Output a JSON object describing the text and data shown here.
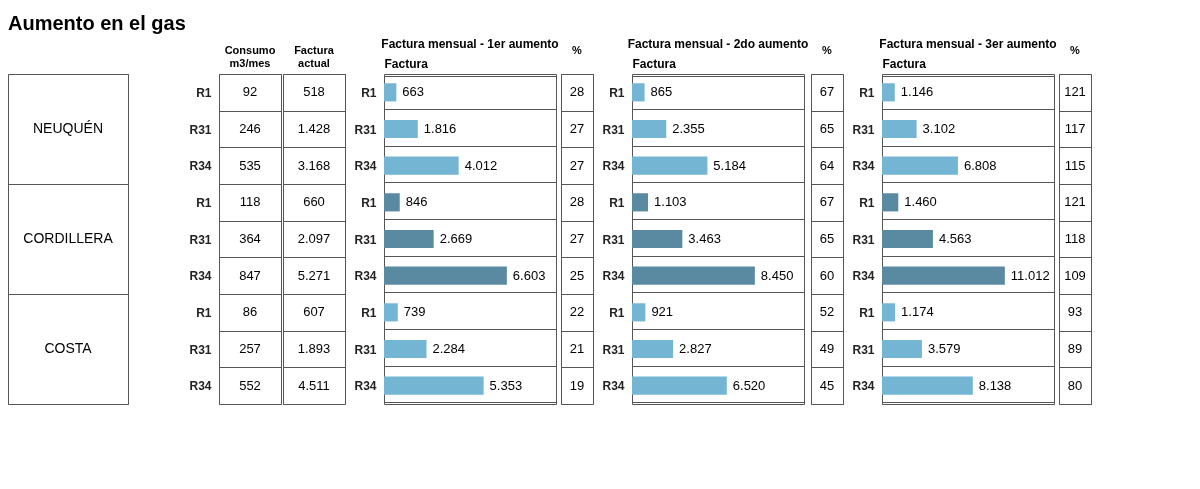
{
  "chart_data": [
    {
      "type": "other",
      "title": "Aumento en el gas",
      "annotations": [
        "NEUQUÉN",
        "CORDILLERA",
        "COSTA"
      ]
    },
    {
      "type": "other",
      "xlabel": "Consumo m3/mes",
      "y_categories": [
        "R1",
        "R31",
        "R34",
        "R1",
        "R31",
        "R34",
        "R1",
        "R31",
        "R34"
      ],
      "annotations": [
        "92",
        "246",
        "535",
        "118",
        "364",
        "847",
        "86",
        "257",
        "552"
      ]
    },
    {
      "type": "other",
      "xlabel": "Factura actual",
      "annotations": [
        "518",
        "1.428",
        "3.168",
        "660",
        "2.097",
        "5.271",
        "607",
        "1.893",
        "4.511"
      ]
    },
    {
      "type": "bar",
      "orientation": "horizontal",
      "title": "Factura mensual - 1er aumento",
      "xlabel": "Factura",
      "grid": "y",
      "categories": [
        "R1",
        "R31",
        "R34",
        "R1",
        "R31",
        "R34",
        "R1",
        "R31",
        "R34"
      ],
      "values": [
        663,
        1816,
        4012,
        846,
        2669,
        6603,
        739,
        2284,
        5353
      ],
      "value_labels": [
        "663",
        "1.816",
        "4.012",
        "846",
        "2.669",
        "6.603",
        "739",
        "2.284",
        "5.353"
      ],
      "colors": [
        "#74b5d3",
        "#74b5d3",
        "#74b5d3",
        "#5a8aa1",
        "#5a8aa1",
        "#5a8aa1",
        "#74b5d3",
        "#74b5d3",
        "#74b5d3"
      ]
    },
    {
      "type": "other",
      "xlabel": "%",
      "annotations": [
        "28",
        "27",
        "27",
        "28",
        "27",
        "25",
        "22",
        "21",
        "19"
      ]
    },
    {
      "type": "bar",
      "orientation": "horizontal",
      "title": "Factura mensual - 2do aumento",
      "xlabel": "Factura",
      "grid": "y",
      "categories": [
        "R1",
        "R31",
        "R34",
        "R1",
        "R31",
        "R34",
        "R1",
        "R31",
        "R34"
      ],
      "values": [
        865,
        2355,
        5184,
        1103,
        3463,
        8450,
        921,
        2827,
        6520
      ],
      "value_labels": [
        "865",
        "2.355",
        "5.184",
        "1.103",
        "3.463",
        "8.450",
        "921",
        "2.827",
        "6.520"
      ],
      "colors": [
        "#74b5d3",
        "#74b5d3",
        "#74b5d3",
        "#5a8aa1",
        "#5a8aa1",
        "#5a8aa1",
        "#74b5d3",
        "#74b5d3",
        "#74b5d3"
      ]
    },
    {
      "type": "other",
      "xlabel": "%",
      "annotations": [
        "67",
        "65",
        "64",
        "67",
        "65",
        "60",
        "52",
        "49",
        "45"
      ]
    },
    {
      "type": "bar",
      "orientation": "horizontal",
      "title": "Factura mensual - 3er aumento",
      "xlabel": "Factura",
      "grid": "y",
      "categories": [
        "R1",
        "R31",
        "R34",
        "R1",
        "R31",
        "R34",
        "R1",
        "R31",
        "R34"
      ],
      "values": [
        1146,
        3102,
        6808,
        1460,
        4563,
        11012,
        1174,
        3579,
        8138
      ],
      "value_labels": [
        "1.146",
        "3.102",
        "6.808",
        "1.460",
        "4.563",
        "11.012",
        "1.174",
        "3.579",
        "8.138"
      ],
      "colors": [
        "#74b5d3",
        "#74b5d3",
        "#74b5d3",
        "#5a8aa1",
        "#5a8aa1",
        "#5a8aa1",
        "#74b5d3",
        "#74b5d3",
        "#74b5d3"
      ]
    },
    {
      "type": "other",
      "xlabel": "%",
      "annotations": [
        "121",
        "117",
        "115",
        "121",
        "118",
        "109",
        "93",
        "89",
        "80"
      ]
    }
  ]
}
